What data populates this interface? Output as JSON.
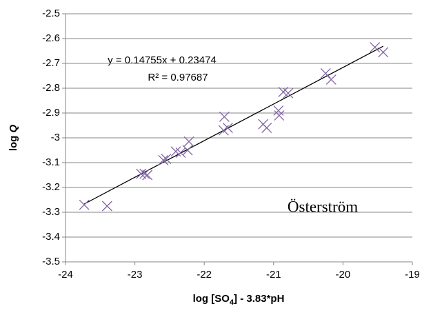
{
  "chart_data": {
    "type": "scatter",
    "x_label": {
      "before": "log [SO",
      "sub": "4",
      "after": "] - 3.83*pH"
    },
    "y_label": {
      "text": "log ",
      "italic": "Q"
    },
    "annotation": "Österström",
    "series": [
      {
        "color": "#8064a2",
        "x": [
          -23.73,
          -23.4,
          -22.91,
          -22.86,
          -22.82,
          -22.59,
          -22.55,
          -22.41,
          -22.34,
          -22.24,
          -22.22,
          -21.71,
          -21.72,
          -21.66,
          -21.15,
          -21.1,
          -20.93,
          -20.92,
          -20.86,
          -20.79,
          -20.25,
          -20.17,
          -19.54,
          -19.42
        ],
        "values": [
          -3.27,
          -3.275,
          -3.145,
          -3.145,
          -3.15,
          -3.09,
          -3.085,
          -3.055,
          -3.06,
          -3.05,
          -3.015,
          -2.915,
          -2.97,
          -2.96,
          -2.945,
          -2.96,
          -2.89,
          -2.91,
          -2.815,
          -2.82,
          -2.74,
          -2.765,
          -2.635,
          -2.655
        ]
      }
    ],
    "trendline": {
      "slope": 0.14755,
      "intercept": 0.23474,
      "x": [
        -23.73,
        -19.42
      ],
      "color": "#000000",
      "equation": "y = 0.14755x + 0.23474",
      "r2_label": "R² = 0.97687"
    },
    "xlim": [
      -24,
      -19
    ],
    "xticks": [
      -24,
      -23,
      -22,
      -21,
      -20,
      -19
    ],
    "ylim": [
      -3.5,
      -2.5
    ],
    "yticks": [
      -2.5,
      -2.6,
      -2.7,
      -2.8,
      -2.9,
      -3,
      -3.1,
      -3.2,
      -3.3,
      -3.4,
      -3.5
    ],
    "grid": true
  }
}
